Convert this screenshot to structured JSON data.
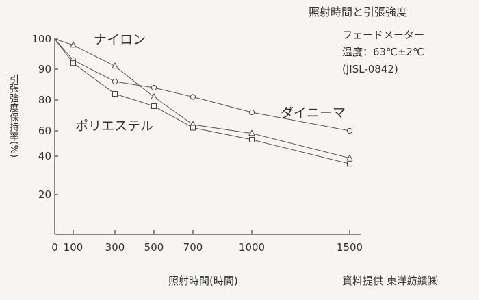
{
  "chart_data": {
    "type": "line",
    "title": "照射時間と引張強度",
    "conditions": [
      "フェードメーター",
      "温度：63℃±2℃",
      "(JISL-0842)"
    ],
    "xlabel": "照射時間(時間)",
    "ylabel": "引張強度保持率(%)",
    "source": "資料提供 東洋紡績㈱",
    "x_ticks": [
      0,
      100,
      300,
      500,
      700,
      1000,
      1500
    ],
    "y_ticks": [
      20,
      40,
      60,
      80,
      90,
      100
    ],
    "series": [
      {
        "name": "ナイロン",
        "marker": "triangle",
        "points": [
          [
            0,
            100
          ],
          [
            100,
            98
          ],
          [
            300,
            91
          ],
          [
            500,
            81
          ],
          [
            700,
            64
          ],
          [
            1000,
            58
          ],
          [
            1500,
            39
          ]
        ]
      },
      {
        "name": "ダイニーマ",
        "marker": "circle",
        "points": [
          [
            0,
            100
          ],
          [
            100,
            93
          ],
          [
            300,
            86
          ],
          [
            500,
            84
          ],
          [
            700,
            81
          ],
          [
            1000,
            72
          ],
          [
            1500,
            60
          ]
        ]
      },
      {
        "name": "ポリエステル",
        "marker": "square",
        "points": [
          [
            0,
            100
          ],
          [
            100,
            92
          ],
          [
            300,
            82
          ],
          [
            500,
            76
          ],
          [
            700,
            62
          ],
          [
            1000,
            53
          ],
          [
            1500,
            36
          ]
        ]
      }
    ]
  }
}
